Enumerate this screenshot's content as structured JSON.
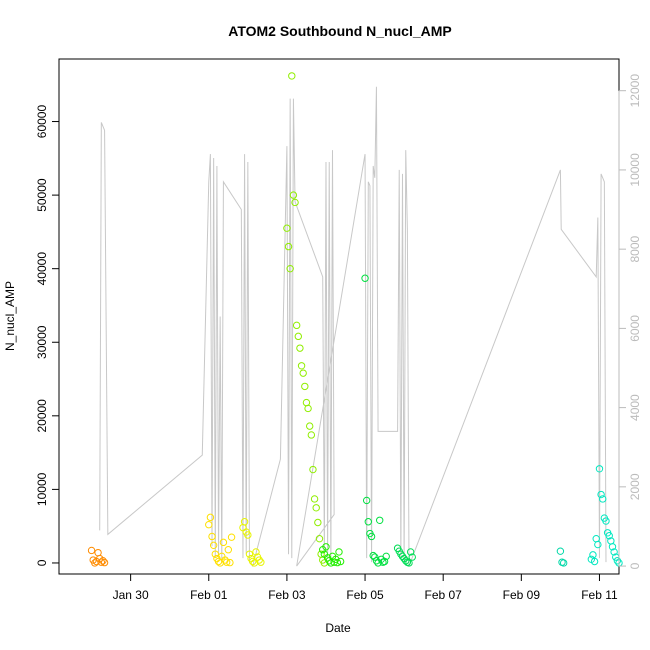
{
  "chart_data": {
    "type": "scatter",
    "title": "ATOM2 Southbound N_nucl_AMP",
    "xlabel": "Date",
    "ylabel": "N_nucl_AMP",
    "xlim": [
      "2024-01-28T04:00",
      "2024-02-11T12:00"
    ],
    "ylim": [
      -1500,
      68500
    ],
    "y2lim": [
      -200,
      12800
    ],
    "x_ticks": [
      {
        "label": "Jan 30",
        "date": "2024-01-30T00:00"
      },
      {
        "label": "Feb 01",
        "date": "2024-02-01T00:00"
      },
      {
        "label": "Feb 03",
        "date": "2024-02-03T00:00"
      },
      {
        "label": "Feb 05",
        "date": "2024-02-05T00:00"
      },
      {
        "label": "Feb 07",
        "date": "2024-02-07T00:00"
      },
      {
        "label": "Feb 09",
        "date": "2024-02-09T00:00"
      },
      {
        "label": "Feb 11",
        "date": "2024-02-11T00:00"
      }
    ],
    "y_ticks": [
      0,
      10000,
      20000,
      30000,
      40000,
      50000,
      60000
    ],
    "y2_ticks": [
      0,
      2000,
      4000,
      6000,
      8000,
      10000,
      12000
    ],
    "grid": false,
    "points_series": [
      {
        "color": "#FF8C00",
        "points": [
          [
            "2024-01-29T00:00",
            1700
          ],
          [
            "2024-01-29T01:00",
            400
          ],
          [
            "2024-01-29T02:00",
            0
          ],
          [
            "2024-01-29T03:00",
            200
          ],
          [
            "2024-01-29T04:00",
            1400
          ],
          [
            "2024-01-29T05:00",
            600
          ],
          [
            "2024-01-29T06:00",
            100
          ],
          [
            "2024-01-29T07:00",
            300
          ],
          [
            "2024-01-29T08:00",
            50
          ]
        ]
      },
      {
        "color": "#FFE000",
        "points": [
          [
            "2024-02-01T00:00",
            5200
          ],
          [
            "2024-02-01T01:00",
            6200
          ],
          [
            "2024-02-01T02:00",
            3600
          ],
          [
            "2024-02-01T03:00",
            2400
          ],
          [
            "2024-02-01T04:00",
            1200
          ],
          [
            "2024-02-01T05:00",
            600
          ],
          [
            "2024-02-01T06:00",
            200
          ],
          [
            "2024-02-01T07:00",
            0
          ],
          [
            "2024-02-01T08:00",
            900
          ],
          [
            "2024-02-01T09:00",
            2800
          ],
          [
            "2024-02-01T10:00",
            400
          ],
          [
            "2024-02-01T11:00",
            100
          ],
          [
            "2024-02-01T12:00",
            1800
          ],
          [
            "2024-02-01T13:00",
            50
          ],
          [
            "2024-02-01T14:00",
            3500
          ]
        ]
      },
      {
        "color": "#E8F500",
        "points": [
          [
            "2024-02-01T21:00",
            4800
          ],
          [
            "2024-02-01T22:00",
            5600
          ],
          [
            "2024-02-01T23:00",
            4200
          ],
          [
            "2024-02-02T00:00",
            3800
          ],
          [
            "2024-02-02T01:00",
            1200
          ],
          [
            "2024-02-02T02:00",
            600
          ],
          [
            "2024-02-02T03:00",
            200
          ],
          [
            "2024-02-02T04:00",
            0
          ],
          [
            "2024-02-02T05:00",
            1500
          ],
          [
            "2024-02-02T06:00",
            800
          ],
          [
            "2024-02-02T07:00",
            400
          ],
          [
            "2024-02-02T08:00",
            100
          ]
        ]
      },
      {
        "color": "#90EE00",
        "points": [
          [
            "2024-02-03T00:00",
            45500
          ],
          [
            "2024-02-03T01:00",
            43000
          ],
          [
            "2024-02-03T02:00",
            40000
          ],
          [
            "2024-02-03T03:00",
            66200
          ],
          [
            "2024-02-03T04:00",
            50000
          ],
          [
            "2024-02-03T05:00",
            49000
          ],
          [
            "2024-02-03T06:00",
            32300
          ],
          [
            "2024-02-03T07:00",
            30800
          ],
          [
            "2024-02-03T08:00",
            29200
          ],
          [
            "2024-02-03T09:00",
            26800
          ],
          [
            "2024-02-03T10:00",
            25800
          ],
          [
            "2024-02-03T11:00",
            24000
          ],
          [
            "2024-02-03T12:00",
            21800
          ],
          [
            "2024-02-03T13:00",
            21000
          ],
          [
            "2024-02-03T14:00",
            18600
          ],
          [
            "2024-02-03T15:00",
            17400
          ],
          [
            "2024-02-03T16:00",
            12700
          ],
          [
            "2024-02-03T17:00",
            8700
          ],
          [
            "2024-02-03T18:00",
            7500
          ],
          [
            "2024-02-03T19:00",
            5500
          ],
          [
            "2024-02-03T20:00",
            3300
          ],
          [
            "2024-02-03T21:00",
            1200
          ],
          [
            "2024-02-03T22:00",
            400
          ],
          [
            "2024-02-03T23:00",
            0
          ]
        ]
      },
      {
        "color": "#22EE00",
        "points": [
          [
            "2024-02-03T22:00",
            1800
          ],
          [
            "2024-02-03T23:00",
            1200
          ],
          [
            "2024-02-04T00:00",
            2200
          ],
          [
            "2024-02-04T01:00",
            700
          ],
          [
            "2024-02-04T02:00",
            300
          ],
          [
            "2024-02-04T03:00",
            0
          ],
          [
            "2024-02-04T04:00",
            900
          ],
          [
            "2024-02-04T05:00",
            100
          ],
          [
            "2024-02-04T06:00",
            500
          ],
          [
            "2024-02-04T07:00",
            50
          ],
          [
            "2024-02-04T08:00",
            1500
          ],
          [
            "2024-02-04T09:00",
            200
          ]
        ]
      },
      {
        "color": "#00E040",
        "points": [
          [
            "2024-02-05T00:00",
            38700
          ],
          [
            "2024-02-05T01:00",
            8500
          ],
          [
            "2024-02-05T02:00",
            5600
          ],
          [
            "2024-02-05T03:00",
            4000
          ],
          [
            "2024-02-05T04:00",
            3600
          ],
          [
            "2024-02-05T05:00",
            1000
          ],
          [
            "2024-02-05T06:00",
            800
          ],
          [
            "2024-02-05T07:00",
            300
          ],
          [
            "2024-02-05T08:00",
            0
          ],
          [
            "2024-02-05T09:00",
            5800
          ],
          [
            "2024-02-05T10:00",
            500
          ],
          [
            "2024-02-05T11:00",
            100
          ],
          [
            "2024-02-05T12:00",
            200
          ],
          [
            "2024-02-05T13:00",
            900
          ]
        ]
      },
      {
        "color": "#00DD55",
        "points": [
          [
            "2024-02-05T20:00",
            2000
          ],
          [
            "2024-02-05T21:00",
            1600
          ],
          [
            "2024-02-05T22:00",
            1200
          ],
          [
            "2024-02-05T23:00",
            900
          ],
          [
            "2024-02-06T00:00",
            600
          ],
          [
            "2024-02-06T01:00",
            300
          ],
          [
            "2024-02-06T02:00",
            100
          ],
          [
            "2024-02-06T03:00",
            0
          ],
          [
            "2024-02-06T04:00",
            1500
          ],
          [
            "2024-02-06T05:00",
            800
          ]
        ]
      },
      {
        "color": "#00D8A8",
        "points": [
          [
            "2024-02-10T00:00",
            1600
          ],
          [
            "2024-02-10T01:00",
            100
          ],
          [
            "2024-02-10T02:00",
            0
          ]
        ]
      },
      {
        "color": "#00E8C0",
        "points": [
          [
            "2024-02-10T22:00",
            3300
          ],
          [
            "2024-02-10T23:00",
            2500
          ],
          [
            "2024-02-11T00:00",
            12800
          ],
          [
            "2024-02-11T01:00",
            9300
          ],
          [
            "2024-02-11T02:00",
            8700
          ],
          [
            "2024-02-11T03:00",
            6100
          ],
          [
            "2024-02-11T04:00",
            5700
          ],
          [
            "2024-02-11T05:00",
            4100
          ],
          [
            "2024-02-11T06:00",
            3700
          ],
          [
            "2024-02-11T07:00",
            3000
          ],
          [
            "2024-02-11T08:00",
            2200
          ],
          [
            "2024-02-11T09:00",
            1500
          ],
          [
            "2024-02-11T10:00",
            800
          ],
          [
            "2024-02-11T11:00",
            300
          ],
          [
            "2024-02-11T12:00",
            0
          ],
          [
            "2024-02-10T21:00",
            200
          ],
          [
            "2024-02-10T20:00",
            1100
          ],
          [
            "2024-02-10T19:00",
            500
          ]
        ]
      }
    ],
    "line_series": {
      "axis": "right",
      "color": "#C8C8C8",
      "points": [
        [
          "2024-01-29T05:00",
          900
        ],
        [
          "2024-01-29T06:00",
          11200
        ],
        [
          "2024-01-29T08:00",
          11000
        ],
        [
          "2024-01-29T10:00",
          800
        ],
        [
          "2024-01-31T20:00",
          2800
        ],
        [
          "2024-02-01T00:00",
          9700
        ],
        [
          "2024-02-01T01:00",
          10400
        ],
        [
          "2024-02-01T02:00",
          500
        ],
        [
          "2024-02-01T03:00",
          10300
        ],
        [
          "2024-02-01T04:00",
          200
        ],
        [
          "2024-02-01T05:00",
          10100
        ],
        [
          "2024-02-01T06:00",
          300
        ],
        [
          "2024-02-01T07:00",
          6300
        ],
        [
          "2024-02-01T08:00",
          100
        ],
        [
          "2024-02-01T09:00",
          9700
        ],
        [
          "2024-02-01T20:00",
          9000
        ],
        [
          "2024-02-01T21:00",
          200
        ],
        [
          "2024-02-01T22:00",
          10400
        ],
        [
          "2024-02-01T23:00",
          300
        ],
        [
          "2024-02-02T00:00",
          10200
        ],
        [
          "2024-02-02T01:00",
          100
        ],
        [
          "2024-02-02T03:00",
          0
        ],
        [
          "2024-02-02T20:00",
          2700
        ],
        [
          "2024-02-03T00:00",
          10600
        ],
        [
          "2024-02-03T01:00",
          300
        ],
        [
          "2024-02-03T02:00",
          11800
        ],
        [
          "2024-02-03T03:00",
          200
        ],
        [
          "2024-02-03T04:00",
          11800
        ],
        [
          "2024-02-03T05:00",
          9200
        ],
        [
          "2024-02-03T22:00",
          7300
        ],
        [
          "2024-02-03T23:00",
          300
        ],
        [
          "2024-02-04T00:00",
          10200
        ],
        [
          "2024-02-04T01:00",
          200
        ],
        [
          "2024-02-04T02:00",
          10200
        ],
        [
          "2024-02-04T03:00",
          100
        ],
        [
          "2024-02-04T04:00",
          10500
        ],
        [
          "2024-02-04T05:00",
          1300
        ],
        [
          "2024-02-03T06:00",
          0
        ],
        [
          "2024-02-05T00:00",
          10400
        ],
        [
          "2024-02-05T01:00",
          200
        ],
        [
          "2024-02-05T02:00",
          9700
        ],
        [
          "2024-02-05T03:00",
          9600
        ],
        [
          "2024-02-05T04:00",
          100
        ],
        [
          "2024-02-05T05:00",
          10100
        ],
        [
          "2024-02-05T06:00",
          9800
        ],
        [
          "2024-02-05T07:00",
          12100
        ],
        [
          "2024-02-05T08:00",
          3400
        ],
        [
          "2024-02-05T20:00",
          3400
        ],
        [
          "2024-02-05T21:00",
          10000
        ],
        [
          "2024-02-05T22:00",
          200
        ],
        [
          "2024-02-05T23:00",
          9900
        ],
        [
          "2024-02-06T00:00",
          100
        ],
        [
          "2024-02-06T01:00",
          10500
        ],
        [
          "2024-02-06T02:00",
          8500
        ],
        [
          "2024-02-06T03:00",
          0
        ],
        [
          "2024-02-10T00:00",
          10000
        ],
        [
          "2024-02-10T00:30",
          8500
        ],
        [
          "2024-02-10T22:00",
          7300
        ],
        [
          "2024-02-10T23:00",
          8800
        ],
        [
          "2024-02-11T00:00",
          200
        ],
        [
          "2024-02-11T01:00",
          9900
        ],
        [
          "2024-02-11T03:00",
          9700
        ],
        [
          "2024-02-11T04:00",
          100
        ]
      ]
    }
  }
}
